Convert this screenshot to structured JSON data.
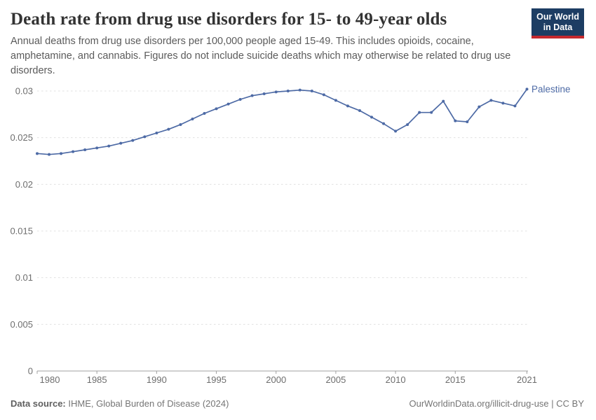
{
  "header": {
    "title": "Death rate from drug use disorders for 15- to 49-year olds",
    "subtitle": "Annual deaths from drug use disorders per 100,000 people aged 15-49. This includes opioids, cocaine, amphetamine, and cannabis. Figures do not include suicide deaths which may otherwise be related to drug use disorders."
  },
  "logo": {
    "line1": "Our World",
    "line2": "in Data",
    "bg_color": "#1d3d63",
    "bar_color": "#c5292e"
  },
  "chart_data": {
    "type": "line",
    "title": "Death rate from drug use disorders for 15- to 49-year olds",
    "xlabel": "",
    "ylabel": "",
    "xlim": [
      1980,
      2021
    ],
    "ylim": [
      0,
      0.03
    ],
    "x_ticks": [
      1980,
      1985,
      1990,
      1995,
      2000,
      2005,
      2010,
      2015,
      2021
    ],
    "y_ticks": [
      0,
      0.005,
      0.01,
      0.015,
      0.02,
      0.025,
      0.03
    ],
    "grid": "horizontal-dashed",
    "legend": "end-of-line-label",
    "grid_color": "#e0e0e0",
    "axis_color": "#a0a0a0",
    "tick_label_color": "#6e6e6e",
    "series": [
      {
        "name": "Palestine",
        "color": "#4d6aa5",
        "x": [
          1980,
          1981,
          1982,
          1983,
          1984,
          1985,
          1986,
          1987,
          1988,
          1989,
          1990,
          1991,
          1992,
          1993,
          1994,
          1995,
          1996,
          1997,
          1998,
          1999,
          2000,
          2001,
          2002,
          2003,
          2004,
          2005,
          2006,
          2007,
          2008,
          2009,
          2010,
          2011,
          2012,
          2013,
          2014,
          2015,
          2016,
          2017,
          2018,
          2019,
          2020,
          2021
        ],
        "values": [
          0.0233,
          0.0232,
          0.0233,
          0.0235,
          0.0237,
          0.0239,
          0.0241,
          0.0244,
          0.0247,
          0.0251,
          0.0255,
          0.0259,
          0.0264,
          0.027,
          0.0276,
          0.0281,
          0.0286,
          0.0291,
          0.0295,
          0.0297,
          0.0299,
          0.03,
          0.0301,
          0.03,
          0.0296,
          0.029,
          0.0284,
          0.0279,
          0.0272,
          0.0265,
          0.0257,
          0.0264,
          0.0277,
          0.0277,
          0.0289,
          0.0268,
          0.0267,
          0.0283,
          0.029,
          0.0287,
          0.0284,
          0.0302
        ]
      }
    ]
  },
  "footer": {
    "source_label": "Data source:",
    "source_text": " IHME, Global Burden of Disease (2024)",
    "credit": "OurWorldinData.org/illicit-drug-use | CC BY"
  }
}
